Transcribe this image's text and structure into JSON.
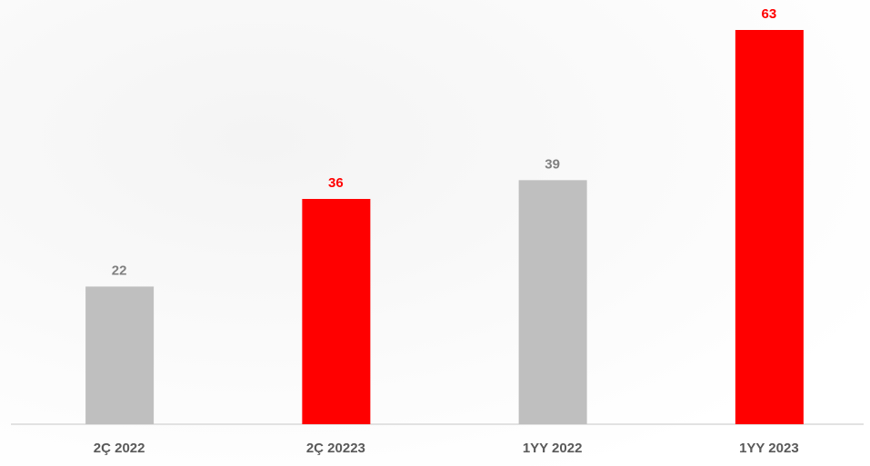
{
  "chart_data": {
    "type": "bar",
    "categories": [
      "2Ç 2022",
      "2Ç 20223",
      "1YY 2022",
      "1YY 2023"
    ],
    "values": [
      22,
      36,
      39,
      63
    ],
    "colors": [
      "#bfbfbf",
      "#ff0000",
      "#bfbfbf",
      "#ff0000"
    ],
    "value_label_colors": [
      "#808080",
      "#ff0000",
      "#808080",
      "#ff0000"
    ]
  }
}
